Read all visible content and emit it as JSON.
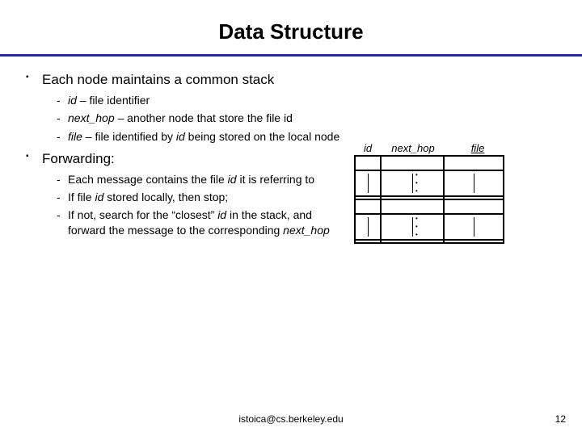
{
  "title": "Data Structure",
  "bullets": {
    "b1": "Each node maintains a common stack",
    "b1s1_pre": "id",
    "b1s1_post": " – file identifier",
    "b1s2_pre": "next_hop",
    "b1s2_post": " – another node that store the file id",
    "b1s3_pre": "file",
    "b1s3_mid": " – file identified by ",
    "b1s3_var": "id",
    "b1s3_post": " being stored on the local node",
    "b2": "Forwarding:",
    "b2s1_pre": "Each message contains the file ",
    "b2s1_var": "id",
    "b2s1_post": " it is referring to",
    "b2s2_pre": "If file ",
    "b2s2_var": "id",
    "b2s2_post": " stored locally, then stop;",
    "b2s3_pre": "If not, search for the “closest” ",
    "b2s3_var": "id",
    "b2s3_mid": " in the stack, and forward the message to the corresponding ",
    "b2s3_var2": "next_hop"
  },
  "table": {
    "headers": {
      "id": "id",
      "next_hop": "next_hop",
      "file": "file"
    }
  },
  "footer": "istoica@cs.berkeley.edu",
  "page": "12",
  "colors": {
    "rule": "#2a2a8f"
  }
}
